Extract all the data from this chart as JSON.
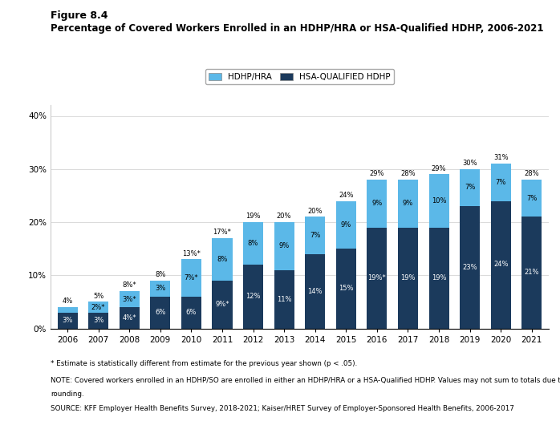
{
  "years": [
    "2006",
    "2007",
    "2008",
    "2009",
    "2010",
    "2011",
    "2012",
    "2013",
    "2014",
    "2015",
    "2016",
    "2017",
    "2018",
    "2019",
    "2020",
    "2021"
  ],
  "hdhp_hra": [
    1,
    2,
    3,
    3,
    7,
    8,
    8,
    9,
    7,
    9,
    9,
    9,
    10,
    7,
    7,
    7
  ],
  "hsa_hdhp": [
    3,
    3,
    4,
    6,
    6,
    9,
    12,
    11,
    14,
    15,
    19,
    19,
    19,
    23,
    24,
    21
  ],
  "hdhp_hra_labels": [
    "",
    "2%*",
    "3%*",
    "3%",
    "7%*",
    "8%",
    "8%",
    "9%",
    "7%",
    "9%",
    "9%",
    "9%",
    "10%",
    "7%",
    "7%",
    "7%"
  ],
  "hsa_hdhp_labels": [
    "3%",
    "3%",
    "4%*",
    "6%",
    "6%",
    "9%*",
    "12%",
    "11%",
    "14%",
    "15%",
    "19%*",
    "19%",
    "19%",
    "23%",
    "24%",
    "21%"
  ],
  "total_labels": [
    "4%",
    "5%",
    "8%*",
    "8%",
    "13%*",
    "17%*",
    "19%",
    "20%",
    "20%",
    "24%",
    "29%",
    "28%",
    "29%",
    "30%",
    "31%",
    "28%"
  ],
  "hdhp_hra_color": "#5BB8E8",
  "hsa_hdhp_color": "#1B3A5C",
  "title_line1": "Figure 8.4",
  "title_line2": "Percentage of Covered Workers Enrolled in an HDHP/HRA or HSA-Qualified HDHP, 2006-2021",
  "legend_labels": [
    "HDHP/HRA",
    "HSA-QUALIFIED HDHP"
  ],
  "ylim": [
    0,
    42
  ],
  "yticks": [
    0,
    10,
    20,
    30,
    40
  ],
  "ytick_labels": [
    "0%",
    "10%",
    "20%",
    "30%",
    "40%"
  ],
  "footnote1": "* Estimate is statistically different from estimate for the previous year shown (p < .05).",
  "footnote2": "NOTE: Covered workers enrolled in an HDHP/SO are enrolled in either an HDHP/HRA or a HSA-Qualified HDHP. Values may not sum to totals due to",
  "footnote3": "rounding.",
  "footnote4": "SOURCE: KFF Employer Health Benefits Survey, 2018-2021; Kaiser/HRET Survey of Employer-Sponsored Health Benefits, 2006-2017",
  "background_color": "#ffffff"
}
